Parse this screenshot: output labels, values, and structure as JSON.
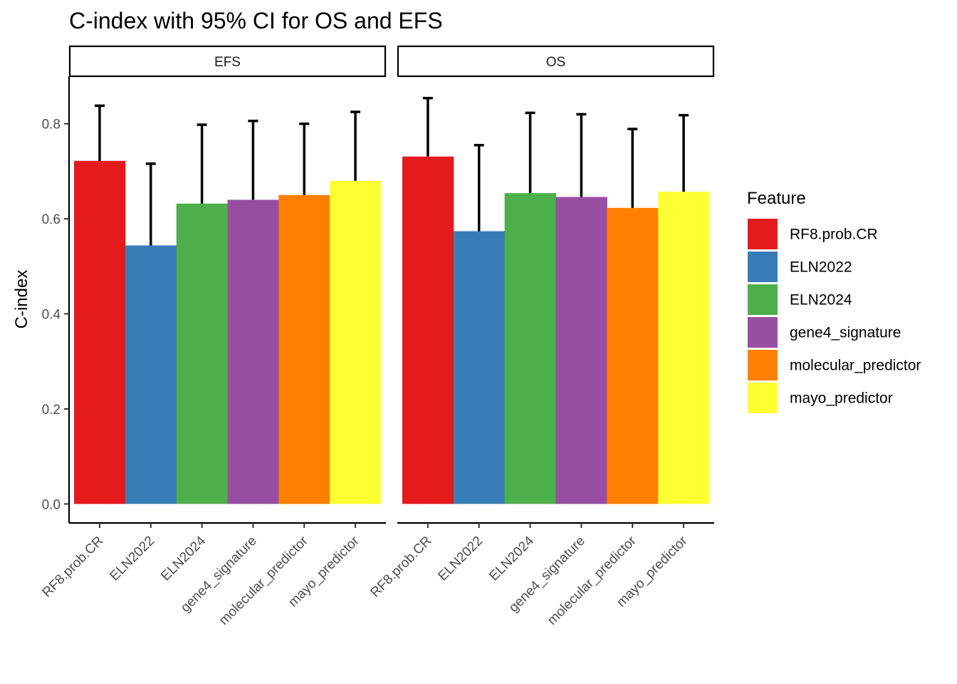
{
  "chart_data": {
    "type": "bar",
    "title": "C-index with 95% CI for OS and EFS",
    "ylabel": "C-index",
    "xlabel": "",
    "ylim": [
      -0.04,
      0.9
    ],
    "yticks": [
      0.0,
      0.2,
      0.4,
      0.6,
      0.8
    ],
    "ytick_labels": [
      "0.0",
      "0.2",
      "0.4",
      "0.6",
      "0.8"
    ],
    "grid": false,
    "legend": {
      "title": "Feature",
      "placement": "right",
      "entries": [
        {
          "label": "RF8.prob.CR",
          "color": "#E41A1C"
        },
        {
          "label": "ELN2022",
          "color": "#377EB8"
        },
        {
          "label": "ELN2024",
          "color": "#4DAF4A"
        },
        {
          "label": "gene4_signature",
          "color": "#984EA3"
        },
        {
          "label": "molecular_predictor",
          "color": "#FF7F00"
        },
        {
          "label": "mayo_predictor",
          "color": "#FFFF33"
        }
      ]
    },
    "categories": [
      "RF8.prob.CR",
      "ELN2022",
      "ELN2024",
      "gene4_signature",
      "molecular_predictor",
      "mayo_predictor"
    ],
    "panels": [
      {
        "name": "EFS",
        "values": [
          0.722,
          0.544,
          0.632,
          0.64,
          0.65,
          0.68
        ],
        "ci_upper": [
          0.838,
          0.716,
          0.798,
          0.806,
          0.8,
          0.825
        ]
      },
      {
        "name": "OS",
        "values": [
          0.731,
          0.574,
          0.654,
          0.646,
          0.623,
          0.657
        ],
        "ci_upper": [
          0.854,
          0.755,
          0.823,
          0.82,
          0.789,
          0.818
        ]
      }
    ]
  }
}
